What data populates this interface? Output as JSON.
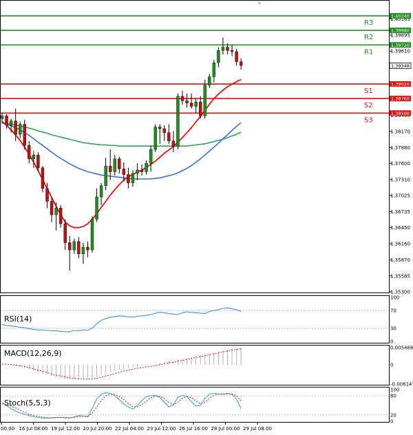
{
  "colors": {
    "resistance": "#1f8f1f",
    "support": "#e01010",
    "bull_candle": "#1f8f1f",
    "bear_candle": "#c01010",
    "ma_fast": "#e81010",
    "ma_mid": "#3a6fd0",
    "ma_slow": "#30a060",
    "rsi": "#3a90e0",
    "stoch_main": "#30b0c0",
    "stoch_signal": "#e01010",
    "macd_hist": "#b0b0b0",
    "macd_signal": "#e01010"
  },
  "chart_data": [
    {
      "type": "candlestick",
      "y_ticks": [
        "1.40185",
        "1.39895",
        "1.39610",
        "1.39330",
        "1.38750",
        "1.38460",
        "1.38170",
        "1.37880",
        "1.37600",
        "1.37310",
        "1.37025",
        "1.36735",
        "1.36450",
        "1.36160",
        "1.35870",
        "1.35585",
        "1.35300"
      ],
      "ylim": [
        1.353,
        1.4045
      ],
      "x_tick_labels": [
        "00:00",
        "16 Jul 08:00",
        "19 Jul 12:00",
        "20 Jul 20:00",
        "22 Jul 04:00",
        "23 Jul 12:00",
        "26 Jul 16:00",
        "28 Jul 00:00",
        "29 Jul 08:00"
      ],
      "levels": [
        {
          "name": "R3",
          "value": 1.4024,
          "label": "1.40240",
          "kind": "resistance"
        },
        {
          "name": "R2",
          "value": 1.3998,
          "label": "1.39980",
          "kind": "resistance"
        },
        {
          "name": "R1",
          "value": 1.3972,
          "label": "1.39720",
          "kind": "resistance"
        },
        {
          "name": "S1",
          "value": 1.3902,
          "label": "1.39020",
          "kind": "support"
        },
        {
          "name": "S2",
          "value": 1.3876,
          "label": "1.38760",
          "kind": "support"
        },
        {
          "name": "S3",
          "value": 1.385,
          "label": "1.38500",
          "kind": "support"
        }
      ],
      "current_price": "1.39348",
      "candles": [
        [
          1.384,
          1.385,
          1.3832,
          1.3845
        ],
        [
          1.3845,
          1.3848,
          1.3822,
          1.3828
        ],
        [
          1.3828,
          1.384,
          1.3815,
          1.3836
        ],
        [
          1.3836,
          1.3858,
          1.38,
          1.3812
        ],
        [
          1.3812,
          1.3835,
          1.3805,
          1.383
        ],
        [
          1.383,
          1.3838,
          1.3785,
          1.3792
        ],
        [
          1.3792,
          1.38,
          1.376,
          1.3768
        ],
        [
          1.3768,
          1.3782,
          1.3752,
          1.3775
        ],
        [
          1.3775,
          1.378,
          1.3745,
          1.3752
        ],
        [
          1.3752,
          1.3755,
          1.3708,
          1.3715
        ],
        [
          1.3715,
          1.3725,
          1.368,
          1.3692
        ],
        [
          1.3692,
          1.37,
          1.3655,
          1.3668
        ],
        [
          1.3668,
          1.369,
          1.364,
          1.368
        ],
        [
          1.368,
          1.3685,
          1.3645,
          1.3652
        ],
        [
          1.3652,
          1.366,
          1.3605,
          1.3618
        ],
        [
          1.3618,
          1.363,
          1.3568,
          1.3605
        ],
        [
          1.3605,
          1.3625,
          1.3598,
          1.362
        ],
        [
          1.362,
          1.3628,
          1.359,
          1.3598
        ],
        [
          1.3598,
          1.3618,
          1.358,
          1.361
        ],
        [
          1.361,
          1.362,
          1.3592,
          1.3605
        ],
        [
          1.3605,
          1.3665,
          1.36,
          1.366
        ],
        [
          1.366,
          1.3715,
          1.3655,
          1.37
        ],
        [
          1.37,
          1.3725,
          1.3685,
          1.372
        ],
        [
          1.372,
          1.377,
          1.3712,
          1.3755
        ],
        [
          1.3755,
          1.3785,
          1.373,
          1.3745
        ],
        [
          1.3745,
          1.3775,
          1.3738,
          1.3768
        ],
        [
          1.3768,
          1.3772,
          1.3742,
          1.375
        ],
        [
          1.375,
          1.3762,
          1.3728,
          1.374
        ],
        [
          1.374,
          1.3752,
          1.3715,
          1.3725
        ],
        [
          1.3725,
          1.3748,
          1.3718,
          1.3742
        ],
        [
          1.3742,
          1.376,
          1.373,
          1.3748
        ],
        [
          1.3748,
          1.3758,
          1.3738,
          1.3745
        ],
        [
          1.3745,
          1.3765,
          1.374,
          1.376
        ],
        [
          1.376,
          1.3792,
          1.3745,
          1.3785
        ],
        [
          1.3785,
          1.383,
          1.378,
          1.3825
        ],
        [
          1.3825,
          1.383,
          1.3795,
          1.3822
        ],
        [
          1.3822,
          1.3828,
          1.38,
          1.3815
        ],
        [
          1.3815,
          1.383,
          1.3795,
          1.38
        ],
        [
          1.38,
          1.3818,
          1.378,
          1.379
        ],
        [
          1.379,
          1.3885,
          1.3785,
          1.388
        ],
        [
          1.388,
          1.389,
          1.3865,
          1.3872
        ],
        [
          1.3872,
          1.3885,
          1.386,
          1.3868
        ],
        [
          1.3868,
          1.3885,
          1.3858,
          1.3862
        ],
        [
          1.3862,
          1.3875,
          1.385,
          1.387
        ],
        [
          1.387,
          1.388,
          1.384,
          1.3845
        ],
        [
          1.3845,
          1.391,
          1.384,
          1.39
        ],
        [
          1.39,
          1.392,
          1.3895,
          1.3915
        ],
        [
          1.3915,
          1.3945,
          1.3905,
          1.394
        ],
        [
          1.394,
          1.3968,
          1.3932,
          1.3962
        ],
        [
          1.3962,
          1.3985,
          1.3955,
          1.3968
        ],
        [
          1.3968,
          1.3975,
          1.3955,
          1.3962
        ],
        [
          1.3962,
          1.3972,
          1.3952,
          1.396
        ],
        [
          1.396,
          1.3965,
          1.3935,
          1.3942
        ],
        [
          1.3942,
          1.3948,
          1.3928,
          1.3935
        ]
      ],
      "ma_fast": [
        1.3835,
        1.3828,
        1.382,
        1.3811,
        1.3801,
        1.3789,
        1.3776,
        1.3762,
        1.3747,
        1.3731,
        1.3715,
        1.3699,
        1.3683,
        1.3668,
        1.3655,
        1.3648,
        1.3645,
        1.3645,
        1.3647,
        1.3652,
        1.366,
        1.367,
        1.3681,
        1.3692,
        1.3703,
        1.3713,
        1.3722,
        1.373,
        1.3736,
        1.374,
        1.3744,
        1.3748,
        1.3753,
        1.3758,
        1.3764,
        1.3771,
        1.3778,
        1.3784,
        1.379,
        1.3798,
        1.3806,
        1.3815,
        1.3824,
        1.3834,
        1.3844,
        1.3855,
        1.3866,
        1.3876,
        1.3884,
        1.3891,
        1.3897,
        1.3902,
        1.3906,
        1.391
      ],
      "ma_mid": [
        1.3832,
        1.383,
        1.3827,
        1.3824,
        1.382,
        1.3815,
        1.381,
        1.3804,
        1.3798,
        1.3792,
        1.3786,
        1.378,
        1.3774,
        1.3769,
        1.3764,
        1.3759,
        1.3755,
        1.3751,
        1.3748,
        1.3745,
        1.3743,
        1.3741,
        1.3739,
        1.3738,
        1.3737,
        1.3736,
        1.3735,
        1.3734,
        1.3733,
        1.3732,
        1.3732,
        1.3732,
        1.3732,
        1.3732,
        1.3733,
        1.3734,
        1.3736,
        1.3738,
        1.374,
        1.3743,
        1.3747,
        1.3751,
        1.3756,
        1.3762,
        1.3768,
        1.3775,
        1.3782,
        1.3789,
        1.3796,
        1.3804,
        1.3811,
        1.3819,
        1.3826,
        1.3833
      ],
      "ma_slow": [
        1.3832,
        1.3831,
        1.383,
        1.3829,
        1.3827,
        1.3825,
        1.3823,
        1.3821,
        1.3818,
        1.3816,
        1.3814,
        1.3811,
        1.3809,
        1.3807,
        1.3805,
        1.3803,
        1.3801,
        1.3799,
        1.3797,
        1.3796,
        1.3795,
        1.3794,
        1.3793,
        1.3793,
        1.3792,
        1.3792,
        1.3791,
        1.3791,
        1.3791,
        1.3791,
        1.3791,
        1.3791,
        1.3791,
        1.3791,
        1.3791,
        1.3791,
        1.3791,
        1.3791,
        1.3791,
        1.3791,
        1.3791,
        1.3791,
        1.3792,
        1.3793,
        1.3794,
        1.3795,
        1.3797,
        1.3799,
        1.3801,
        1.3803,
        1.3806,
        1.3809,
        1.3812,
        1.3816
      ]
    },
    {
      "type": "line",
      "name": "RSI(14)",
      "y_ticks": [
        "100",
        "70",
        "30",
        "0"
      ],
      "ylim": [
        0,
        100
      ],
      "levels": [
        70,
        30
      ],
      "values": [
        38,
        36,
        35,
        34,
        32,
        31,
        29,
        27,
        26,
        26,
        25,
        24,
        24,
        23,
        22,
        22,
        25,
        24,
        26,
        25,
        30,
        40,
        48,
        52,
        55,
        56,
        58,
        57,
        56,
        55,
        57,
        58,
        59,
        61,
        64,
        66,
        65,
        63,
        62,
        61,
        65,
        67,
        66,
        65,
        64,
        63,
        68,
        70,
        72,
        75,
        76,
        74,
        72,
        68
      ]
    },
    {
      "type": "bar",
      "name": "MACD(12,26,9)",
      "y_ticks": [
        "0.005466",
        "0",
        "-0.006147"
      ],
      "ylim": [
        -0.006147,
        0.005466
      ],
      "values": [
        0.0002,
        0.0001,
        -0.0001,
        -0.0004,
        -0.0007,
        -0.0011,
        -0.0015,
        -0.0019,
        -0.0023,
        -0.0027,
        -0.0031,
        -0.0035,
        -0.0039,
        -0.0042,
        -0.0045,
        -0.0046,
        -0.0047,
        -0.0047,
        -0.0046,
        -0.0045,
        -0.0042,
        -0.0038,
        -0.0033,
        -0.0028,
        -0.0023,
        -0.0019,
        -0.0016,
        -0.0013,
        -0.001,
        -0.0008,
        -0.0006,
        -0.0004,
        -0.0002,
        0.0,
        0.0003,
        0.0006,
        0.0009,
        0.0011,
        0.0013,
        0.0016,
        0.0019,
        0.0022,
        0.0025,
        0.0028,
        0.003,
        0.0033,
        0.0036,
        0.0039,
        0.0042,
        0.0045,
        0.0048,
        0.005,
        0.0052,
        0.0053
      ],
      "signal": [
        0.0002,
        0.0002,
        0.0001,
        -0.0001,
        -0.0003,
        -0.0006,
        -0.0009,
        -0.0013,
        -0.0017,
        -0.0021,
        -0.0025,
        -0.0029,
        -0.0033,
        -0.0036,
        -0.0039,
        -0.0042,
        -0.0044,
        -0.0045,
        -0.0046,
        -0.0046,
        -0.0045,
        -0.0043,
        -0.004,
        -0.0036,
        -0.0032,
        -0.0028,
        -0.0024,
        -0.002,
        -0.0017,
        -0.0014,
        -0.0011,
        -0.0009,
        -0.0007,
        -0.0005,
        -0.0003,
        0.0,
        0.0003,
        0.0006,
        0.0008,
        0.0011,
        0.0014,
        0.0017,
        0.002,
        0.0023,
        0.0026,
        0.0029,
        0.0032,
        0.0035,
        0.0038,
        0.0041,
        0.0044,
        0.0047,
        0.0049,
        0.0051
      ]
    },
    {
      "type": "line",
      "name": "Stoch(5,5,3)",
      "y_ticks": [
        "100",
        "80",
        "20",
        "0"
      ],
      "ylim": [
        0,
        100
      ],
      "levels": [
        80,
        20
      ],
      "main": [
        60,
        50,
        40,
        32,
        26,
        22,
        18,
        14,
        12,
        10,
        10,
        11,
        12,
        12,
        11,
        10,
        14,
        18,
        16,
        14,
        40,
        70,
        85,
        90,
        88,
        80,
        68,
        55,
        45,
        38,
        50,
        65,
        78,
        80,
        82,
        75,
        60,
        45,
        52,
        75,
        82,
        78,
        62,
        48,
        50,
        72,
        85,
        88,
        86,
        85,
        88,
        85,
        70,
        40
      ],
      "signal": [
        55,
        52,
        48,
        42,
        35,
        28,
        22,
        18,
        15,
        13,
        11,
        10,
        11,
        12,
        12,
        11,
        12,
        15,
        16,
        16,
        25,
        45,
        65,
        80,
        86,
        85,
        78,
        68,
        56,
        46,
        45,
        52,
        64,
        74,
        80,
        79,
        72,
        60,
        52,
        60,
        72,
        78,
        74,
        64,
        55,
        60,
        72,
        82,
        86,
        86,
        86,
        86,
        80,
        65
      ]
    }
  ]
}
